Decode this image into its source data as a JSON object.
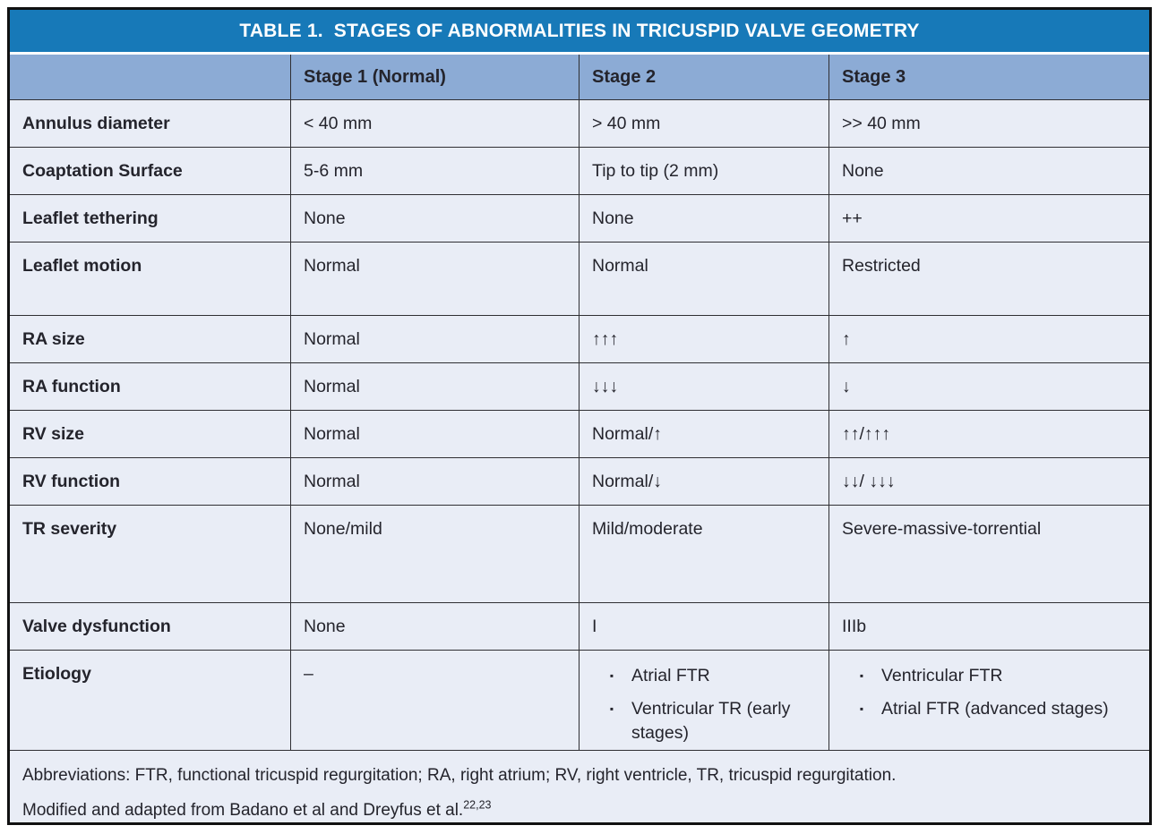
{
  "table": {
    "title": "TABLE 1.  STAGES OF ABNORMALITIES IN TRICUSPID VALVE GEOMETRY",
    "columns": [
      "",
      "Stage 1 (Normal)",
      "Stage 2",
      "Stage 3"
    ],
    "rows": [
      {
        "label": "Annulus diameter",
        "stage1": "< 40 mm",
        "stage2": "> 40 mm",
        "stage3": ">> 40 mm"
      },
      {
        "label": "Coaptation Surface",
        "stage1": "5-6 mm",
        "stage2": "Tip to tip (2 mm)",
        "stage3": "None"
      },
      {
        "label": "Leaflet tethering",
        "stage1": "None",
        "stage2": "None",
        "stage3": "++"
      },
      {
        "label": "Leaflet motion",
        "stage1": "Normal",
        "stage2": "Normal",
        "stage3": "Restricted"
      },
      {
        "label": "RA size",
        "stage1": "Normal",
        "stage2": "↑↑↑",
        "stage3": "↑"
      },
      {
        "label": "RA function",
        "stage1": "Normal",
        "stage2": "↓↓↓",
        "stage3": "↓"
      },
      {
        "label": "RV size",
        "stage1": "Normal",
        "stage2": "Normal/↑",
        "stage3": "↑↑/↑↑↑"
      },
      {
        "label": "RV function",
        "stage1": "Normal",
        "stage2": "Normal/↓",
        "stage3": "↓↓/ ↓↓↓"
      },
      {
        "label": "TR severity",
        "stage1": "None/mild",
        "stage2": "Mild/moderate",
        "stage3": "Severe-massive-torrential"
      },
      {
        "label": "Valve dysfunction",
        "stage1": "None",
        "stage2": "I",
        "stage3": "IIIb"
      },
      {
        "label": "Etiology",
        "stage1": "–",
        "stage2_bullets": [
          "Atrial FTR",
          "Ventricular TR (early stages)"
        ],
        "stage3_bullets": [
          "Ventricular FTR",
          "Atrial FTR (advanced stages)"
        ]
      }
    ],
    "footnote_line1": "Abbreviations: FTR, functional tricuspid regurgitation; RA, right atrium; RV, right ventricle, TR, tricuspid regurgitation.",
    "footnote_line2": "Modified and adapted from Badano et al and Dreyfus et al.",
    "footnote_superscript": "22,23"
  },
  "icons": {
    "bullet": "▪"
  },
  "colors": {
    "title_bar_blue": "#1779b8",
    "header_row_blue": "#8cabd5",
    "body_row_blue": "#e9edf6",
    "text_dark": "#24242c",
    "grid_line": "#2f2f33",
    "outer_border": "#111111"
  }
}
